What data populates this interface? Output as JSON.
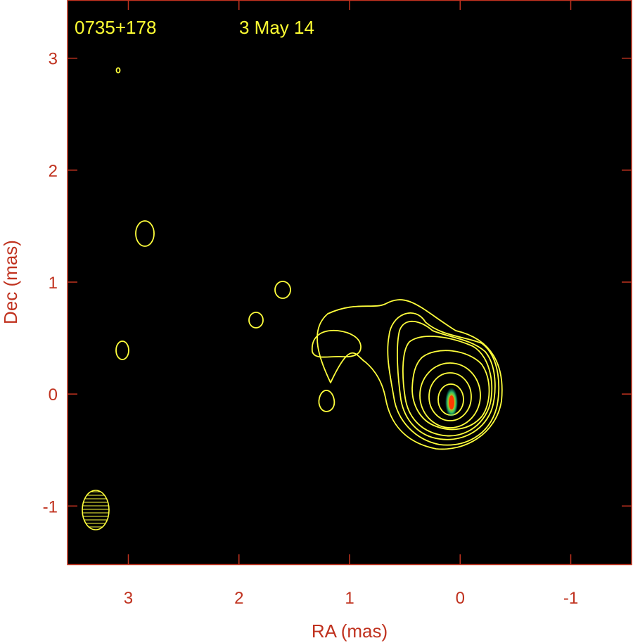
{
  "chart_data": {
    "type": "contour",
    "source_label": "0735+178",
    "epoch_label": "3 May 14",
    "xlabel": "RA (mas)",
    "ylabel": "Dec (mas)",
    "xlim": [
      3.55,
      -1.55
    ],
    "ylim": [
      -1.52,
      3.52
    ],
    "x_ticks": [
      3,
      2,
      1,
      0,
      -1
    ],
    "x_tick_labels": [
      "3",
      "2",
      "1",
      "0",
      "-1"
    ],
    "y_ticks": [
      3,
      2,
      1,
      0,
      -1
    ],
    "y_tick_labels": [
      "3",
      "2",
      "1",
      "0",
      "-1"
    ],
    "grid": false,
    "background_color": "#000000",
    "axis_color": "#c0321f",
    "contour_color": "#ffff3c",
    "beam": {
      "ra": 3.3,
      "dec": -1.05,
      "major_axis_mas": 0.36,
      "minor_axis_mas": 0.24,
      "position_angle_deg": 0
    },
    "core_peak": {
      "ra": 0.05,
      "dec": -0.08
    }
  }
}
